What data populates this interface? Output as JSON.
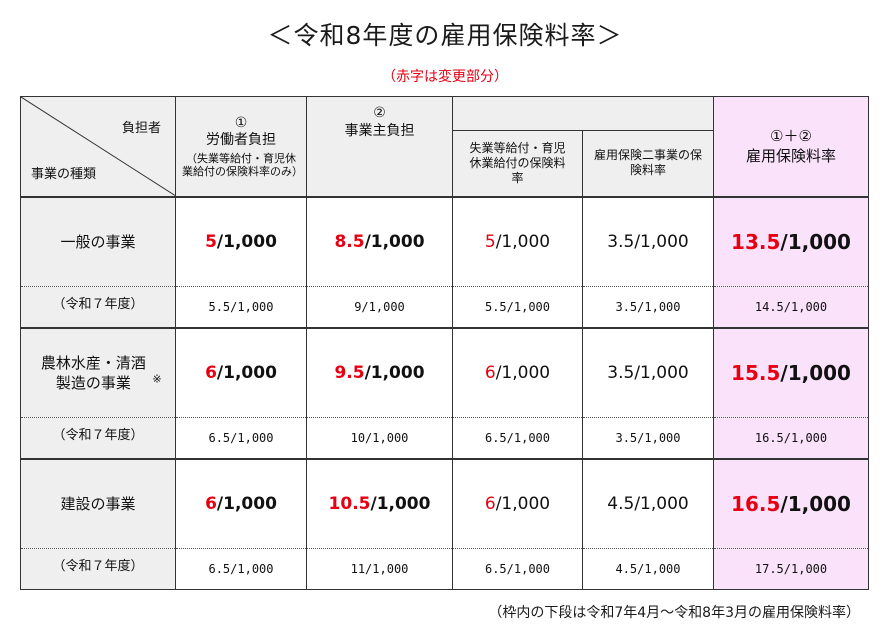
{
  "title": "＜令和8年度の雇用保険料率＞",
  "red_note": "（赤字は変更部分）",
  "header": {
    "corner_top": "負担者",
    "corner_bottom": "事業の種類",
    "col1_num": "①",
    "col1_label": "労働者負担",
    "col1_sub": "（失業等給付・育児休業給付の保険料率のみ）",
    "col2_num": "②",
    "col2_label": "事業主負担",
    "col2a_label": "失業等給付・育児休業給付の保険料率",
    "col2b_label": "雇用保険二事業の保険料率",
    "col3_num": "①＋②",
    "col3_label": "雇用保険料率"
  },
  "rows": [
    {
      "label": "一般の事業",
      "mark": "",
      "worker": {
        "changed": "5",
        "rest": "/1,000"
      },
      "employer": {
        "changed": "8.5",
        "rest": "/1,000"
      },
      "emp_unemp": {
        "changed": "5",
        "rest": "/1,000"
      },
      "emp_two": "3.5/1,000",
      "total": {
        "changed": "13.5",
        "rest": "/1,000"
      },
      "prev_label": "（令和７年度）",
      "prev": [
        "5.5/1,000",
        "9/1,000",
        "5.5/1,000",
        "3.5/1,000",
        "14.5/1,000"
      ]
    },
    {
      "label": "農林水産・清酒製造の事業",
      "mark": "※",
      "worker": {
        "changed": "6",
        "rest": "/1,000"
      },
      "employer": {
        "changed": "9.5",
        "rest": "/1,000"
      },
      "emp_unemp": {
        "changed": "6",
        "rest": "/1,000"
      },
      "emp_two": "3.5/1,000",
      "total": {
        "changed": "15.5",
        "rest": "/1,000"
      },
      "prev_label": "（令和７年度）",
      "prev": [
        "6.5/1,000",
        "10/1,000",
        "6.5/1,000",
        "3.5/1,000",
        "16.5/1,000"
      ]
    },
    {
      "label": "建設の事業",
      "mark": "",
      "worker": {
        "changed": "6",
        "rest": "/1,000"
      },
      "employer": {
        "changed": "10.5",
        "rest": "/1,000"
      },
      "emp_unemp": {
        "changed": "6",
        "rest": "/1,000"
      },
      "emp_two": "4.5/1,000",
      "total": {
        "changed": "16.5",
        "rest": "/1,000"
      },
      "prev_label": "（令和７年度）",
      "prev": [
        "6.5/1,000",
        "11/1,000",
        "6.5/1,000",
        "4.5/1,000",
        "17.5/1,000"
      ]
    }
  ],
  "footnote": "（枠内の下段は令和7年4月～令和8年3月の雇用保険料率）",
  "colors": {
    "changed_text": "#e60012",
    "total_bg": "#fbe2fb",
    "header_bg": "#efefef"
  }
}
